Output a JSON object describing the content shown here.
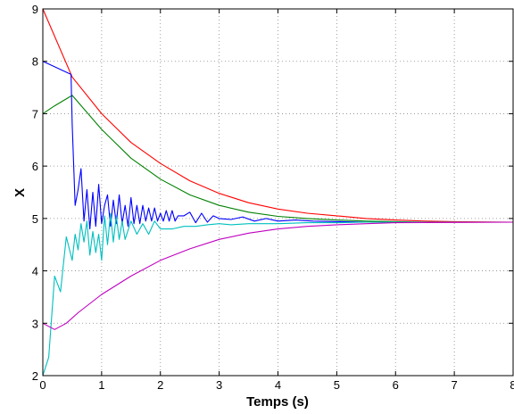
{
  "chart_data": {
    "type": "line",
    "xlabel": "Temps (s)",
    "ylabel": "X",
    "xlim": [
      0,
      8
    ],
    "ylim": [
      2,
      9
    ],
    "xticks": [
      "0",
      "1",
      "2",
      "3",
      "4",
      "5",
      "6",
      "7",
      "8"
    ],
    "yticks": [
      "2",
      "3",
      "4",
      "5",
      "6",
      "7",
      "8",
      "9"
    ],
    "grid": true,
    "series": [
      {
        "color": "#ff0000",
        "x": [
          0,
          0.5,
          1,
          1.5,
          2,
          2.5,
          3,
          3.5,
          4,
          4.5,
          5,
          5.5,
          6,
          6.5,
          7,
          8
        ],
        "y": [
          9,
          7.7,
          7.0,
          6.45,
          6.05,
          5.72,
          5.48,
          5.3,
          5.18,
          5.1,
          5.05,
          5.0,
          4.97,
          4.95,
          4.94,
          4.93
        ]
      },
      {
        "color": "#008000",
        "x": [
          0,
          0.2,
          0.5,
          1,
          1.5,
          2,
          2.5,
          3,
          3.5,
          4,
          4.5,
          5,
          5.5,
          6,
          6.5,
          8
        ],
        "y": [
          7.0,
          7.15,
          7.35,
          6.7,
          6.15,
          5.75,
          5.45,
          5.25,
          5.12,
          5.04,
          5.0,
          4.97,
          4.95,
          4.94,
          4.93,
          4.93
        ]
      },
      {
        "color": "#0000ff",
        "x": [
          0,
          0.1,
          0.48,
          0.5,
          0.55,
          0.6,
          0.65,
          0.7,
          0.75,
          0.8,
          0.85,
          0.9,
          0.95,
          1.0,
          1.05,
          1.1,
          1.15,
          1.2,
          1.25,
          1.3,
          1.35,
          1.4,
          1.45,
          1.5,
          1.55,
          1.6,
          1.65,
          1.7,
          1.75,
          1.8,
          1.85,
          1.9,
          1.95,
          2.0,
          2.05,
          2.1,
          2.15,
          2.2,
          2.25,
          2.3,
          2.4,
          2.5,
          2.6,
          2.7,
          2.8,
          2.9,
          3.0,
          3.2,
          3.4,
          3.6,
          3.8,
          4.0,
          4.3,
          4.6,
          5.0,
          5.5,
          6.0,
          8.0
        ],
        "y": [
          8.0,
          7.95,
          7.75,
          6.8,
          5.25,
          5.55,
          5.95,
          4.95,
          5.55,
          4.8,
          5.5,
          4.85,
          5.65,
          4.9,
          5.25,
          5.45,
          4.85,
          5.35,
          4.9,
          5.45,
          4.9,
          5.25,
          4.85,
          5.4,
          4.9,
          5.25,
          4.9,
          5.25,
          4.95,
          5.2,
          4.95,
          5.2,
          4.95,
          5.1,
          4.95,
          5.15,
          4.95,
          5.15,
          4.95,
          5.05,
          5.05,
          5.12,
          4.92,
          5.1,
          4.93,
          5.05,
          5.0,
          4.98,
          5.03,
          4.95,
          5.0,
          4.95,
          4.97,
          4.95,
          4.94,
          4.93,
          4.93,
          4.93
        ]
      },
      {
        "color": "#00bfbf",
        "x": [
          0,
          0.1,
          0.2,
          0.3,
          0.4,
          0.5,
          0.55,
          0.6,
          0.65,
          0.7,
          0.75,
          0.8,
          0.85,
          0.9,
          0.95,
          1.0,
          1.05,
          1.1,
          1.15,
          1.2,
          1.25,
          1.3,
          1.35,
          1.4,
          1.5,
          1.6,
          1.7,
          1.8,
          1.9,
          2.0,
          2.2,
          2.4,
          2.6,
          2.8,
          3.0,
          3.2,
          3.5,
          4.0,
          4.5,
          5.0,
          5.5,
          6.0,
          8.0
        ],
        "y": [
          2.0,
          2.35,
          3.9,
          3.6,
          4.65,
          4.2,
          4.7,
          4.4,
          4.9,
          4.55,
          4.95,
          4.3,
          4.75,
          4.35,
          4.7,
          4.2,
          5.05,
          4.5,
          5.1,
          4.55,
          5.05,
          4.6,
          4.95,
          4.6,
          4.95,
          4.7,
          4.9,
          4.7,
          4.95,
          4.8,
          4.8,
          4.85,
          4.85,
          4.88,
          4.9,
          4.88,
          4.9,
          4.9,
          4.92,
          4.92,
          4.93,
          4.93,
          4.93
        ]
      },
      {
        "color": "#bf00bf",
        "x": [
          0,
          0.2,
          0.4,
          0.6,
          1,
          1.5,
          2,
          2.5,
          3,
          3.5,
          4,
          4.5,
          5,
          5.5,
          6,
          8
        ],
        "y": [
          3.0,
          2.88,
          3.0,
          3.2,
          3.55,
          3.9,
          4.2,
          4.42,
          4.6,
          4.72,
          4.8,
          4.85,
          4.88,
          4.9,
          4.92,
          4.93
        ]
      }
    ]
  }
}
